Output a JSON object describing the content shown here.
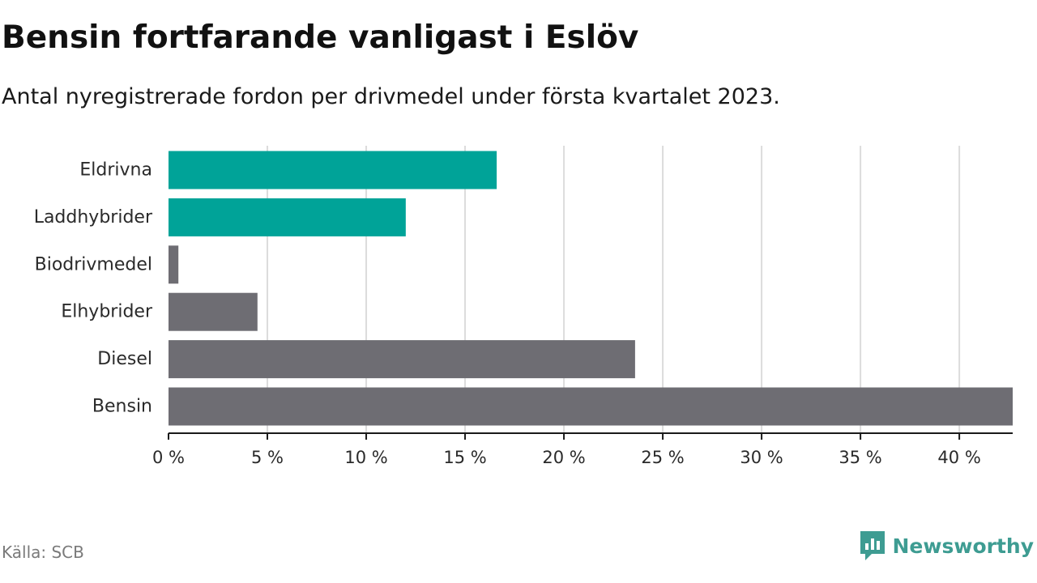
{
  "title": "Bensin fortfarande vanligast i Eslöv",
  "subtitle": "Antal nyregistrerade fordon per drivmedel under första kvartalet 2023.",
  "source": "Källa: SCB",
  "brand": {
    "name": "Newsworthy",
    "icon": "newsworthy-logo-icon",
    "color": "#3e9c92"
  },
  "colors": {
    "highlight": "#00a398",
    "default": "#6e6d73",
    "grid": "#dcdcdc",
    "axis": "#1a1a1a"
  },
  "chart_data": {
    "type": "bar",
    "orientation": "horizontal",
    "categories": [
      "Eldrivna",
      "Laddhybrider",
      "Biodrivmedel",
      "Elhybrider",
      "Diesel",
      "Bensin"
    ],
    "values": [
      16.6,
      12.0,
      0.5,
      4.5,
      23.6,
      42.7
    ],
    "highlighted": [
      true,
      true,
      false,
      false,
      false,
      false
    ],
    "unit": "%",
    "xlim": [
      0,
      42.7
    ],
    "xticks": [
      0,
      5,
      10,
      15,
      20,
      25,
      30,
      35,
      40
    ],
    "xtick_labels": [
      "0 %",
      "5 %",
      "10 %",
      "15 %",
      "20 %",
      "25 %",
      "30 %",
      "35 %",
      "40 %"
    ],
    "grid": true,
    "xlabel": "",
    "ylabel": ""
  }
}
